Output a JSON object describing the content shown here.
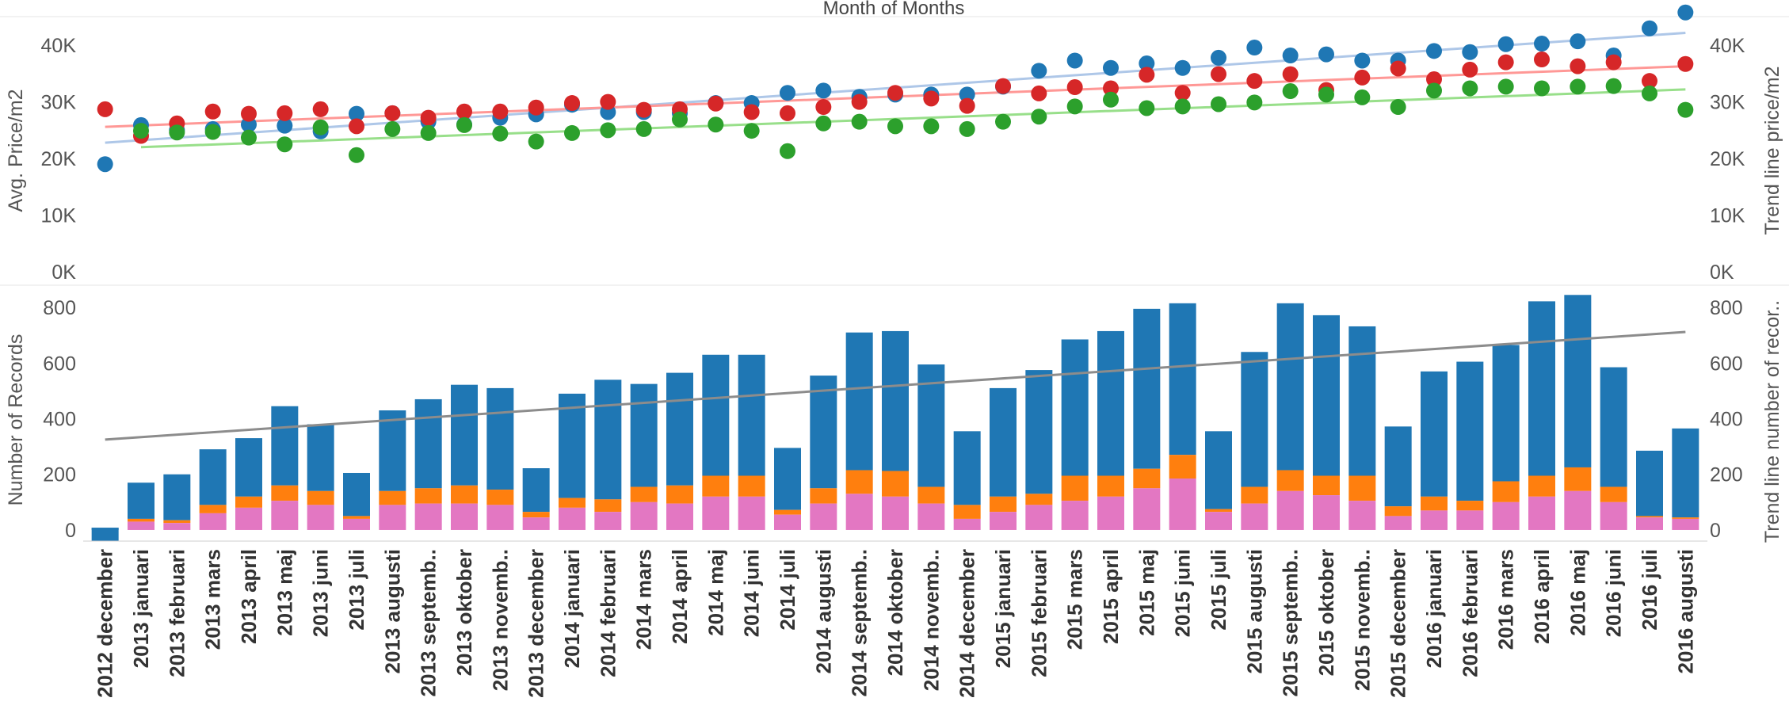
{
  "chart_data": {
    "type": "combo",
    "title": "Month of Months",
    "colors": {
      "blue": "#1f77b4",
      "red": "#d62728",
      "green": "#2ca02c",
      "orange": "#ff7f0e",
      "pink": "#e377c2",
      "trend_blue": "#aec7e8",
      "trend_red": "#ff9896",
      "trend_green": "#98df8a",
      "trend_gray": "#8c8c8c"
    },
    "categories": [
      "2012 december",
      "2013 januari",
      "2013 februari",
      "2013 mars",
      "2013 april",
      "2013 maj",
      "2013 juni",
      "2013 juli",
      "2013 augusti",
      "2013 septemb..",
      "2013 oktober",
      "2013 novemb..",
      "2013 december",
      "2014 januari",
      "2014 februari",
      "2014 mars",
      "2014 april",
      "2014 maj",
      "2014 juni",
      "2014 juli",
      "2014 augusti",
      "2014 septemb..",
      "2014 oktober",
      "2014 novemb..",
      "2014 december",
      "2015 januari",
      "2015 februari",
      "2015 mars",
      "2015 april",
      "2015 maj",
      "2015 juni",
      "2015 juli",
      "2015 augusti",
      "2015 septemb..",
      "2015 oktober",
      "2015 novemb..",
      "2015 december",
      "2016 januari",
      "2016 februari",
      "2016 mars",
      "2016 april",
      "2016 maj",
      "2016 juni",
      "2016 juli",
      "2016 augusti"
    ],
    "top_panel": {
      "type": "scatter",
      "ylabel": "Avg. Price/m2",
      "ylabel_right": "Trend line price/m2",
      "ylim": [
        0,
        48000
      ],
      "yticks": [
        0,
        10000,
        20000,
        30000,
        40000
      ],
      "ytick_labels": [
        "0K",
        "10K",
        "20K",
        "30K",
        "40K"
      ],
      "series": [
        {
          "color_key": "blue",
          "values": [
            19000,
            25900,
            25000,
            25200,
            26000,
            25800,
            24800,
            27900,
            28000,
            26500,
            26000,
            27200,
            27800,
            29500,
            28200,
            28200,
            28000,
            29800,
            29800,
            31600,
            32000,
            30900,
            31300,
            31300,
            31300,
            32700,
            35500,
            37300,
            36000,
            36800,
            36000,
            37800,
            39600,
            38200,
            38400,
            37300,
            37300,
            39000,
            38800,
            40200,
            40300,
            40700,
            38200,
            43000,
            45800
          ],
          "trend": [
            22800,
            42200
          ]
        },
        {
          "color_key": "red",
          "values": [
            28700,
            24000,
            26200,
            28300,
            27900,
            28000,
            28700,
            25700,
            28000,
            27200,
            28300,
            28300,
            29000,
            29800,
            30000,
            28600,
            28700,
            29700,
            28200,
            28000,
            29100,
            30000,
            31600,
            30600,
            29300,
            32800,
            31500,
            32600,
            32400,
            34800,
            31600,
            34900,
            33700,
            34900,
            32100,
            34300,
            35900,
            34000,
            35700,
            37000,
            37500,
            36300,
            37000,
            33700,
            36700
          ],
          "trend": [
            25600,
            36300
          ]
        },
        {
          "color_key": "green",
          "values": [
            null,
            24900,
            24600,
            24700,
            23700,
            22500,
            25500,
            20600,
            25200,
            24500,
            25900,
            24400,
            23000,
            24500,
            25000,
            25200,
            26900,
            26000,
            24900,
            21300,
            26200,
            26500,
            25700,
            25700,
            25200,
            26500,
            27400,
            29200,
            30400,
            28900,
            29200,
            29600,
            29900,
            31900,
            31300,
            30800,
            29100,
            32000,
            32400,
            32700,
            32400,
            32700,
            32800,
            31500,
            28600
          ],
          "trend": [
            22000,
            32200
          ]
        }
      ]
    },
    "bottom_panel": {
      "type": "stacked_bar",
      "ylabel": "Number of Records",
      "ylabel_right": "Trend line number of recor..",
      "ylim": [
        -40,
        880
      ],
      "yticks": [
        0,
        200,
        400,
        600,
        800
      ],
      "ytick_labels": [
        "0",
        "200",
        "400",
        "600",
        "800"
      ],
      "stack_colors": [
        "pink",
        "orange",
        "blue"
      ],
      "totals": [
        8,
        170,
        200,
        290,
        330,
        445,
        380,
        205,
        430,
        470,
        522,
        510,
        222,
        490,
        540,
        525,
        565,
        630,
        630,
        295,
        555,
        710,
        715,
        595,
        355,
        510,
        575,
        685,
        715,
        795,
        815,
        355,
        640,
        815,
        772,
        732,
        372,
        570,
        605,
        665,
        822,
        845,
        585,
        285,
        365
      ],
      "orange_tops": [
        0,
        40,
        35,
        90,
        120,
        160,
        140,
        50,
        140,
        150,
        160,
        145,
        65,
        115,
        110,
        155,
        160,
        195,
        195,
        72,
        150,
        215,
        212,
        155,
        90,
        120,
        130,
        195,
        195,
        220,
        270,
        75,
        155,
        215,
        195,
        195,
        85,
        120,
        105,
        175,
        195,
        225,
        155,
        50,
        45
      ],
      "pink_tops": [
        0,
        30,
        25,
        60,
        80,
        105,
        90,
        40,
        90,
        95,
        95,
        90,
        45,
        80,
        65,
        100,
        95,
        120,
        120,
        55,
        95,
        130,
        120,
        95,
        40,
        65,
        90,
        105,
        120,
        150,
        185,
        65,
        95,
        140,
        125,
        105,
        50,
        70,
        70,
        100,
        120,
        140,
        100,
        45,
        40
      ],
      "trend": [
        325,
        712
      ]
    }
  }
}
